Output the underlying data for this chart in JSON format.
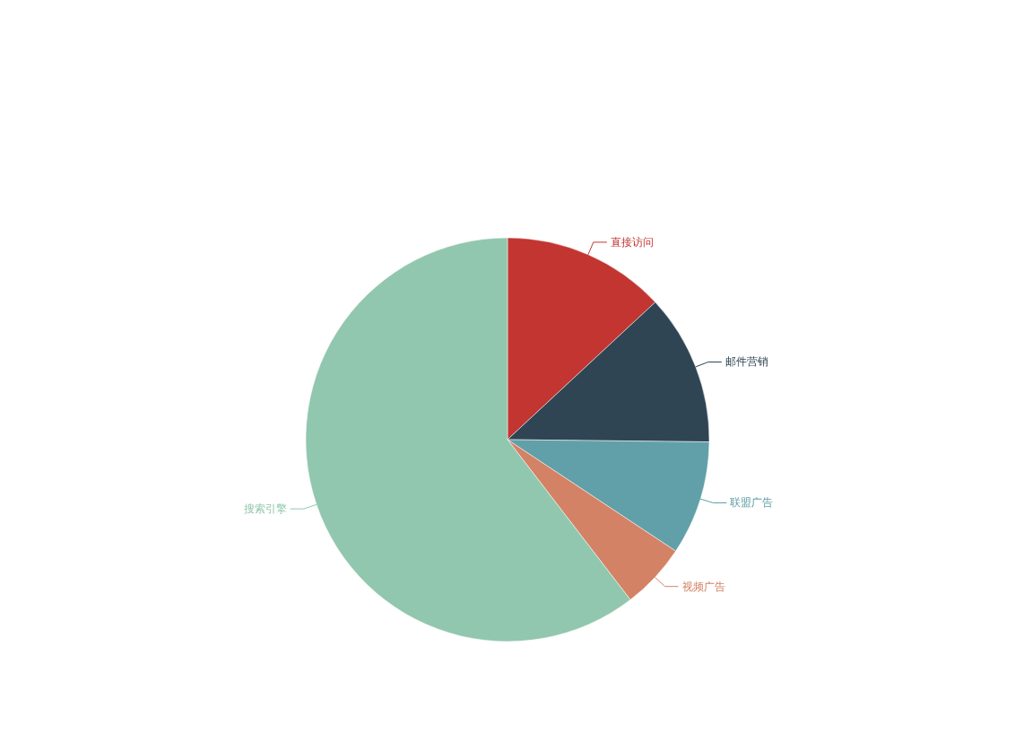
{
  "chart_data": {
    "type": "pie",
    "categories": [
      "直接访问",
      "邮件营销",
      "联盟广告",
      "视频广告",
      "搜索引擎"
    ],
    "values": [
      13.08,
      12.1,
      9.13,
      5.27,
      60.42
    ],
    "colors": [
      "#c23531",
      "#2f4554",
      "#61a0a8",
      "#d48265",
      "#91c7ae"
    ],
    "legend": false
  }
}
